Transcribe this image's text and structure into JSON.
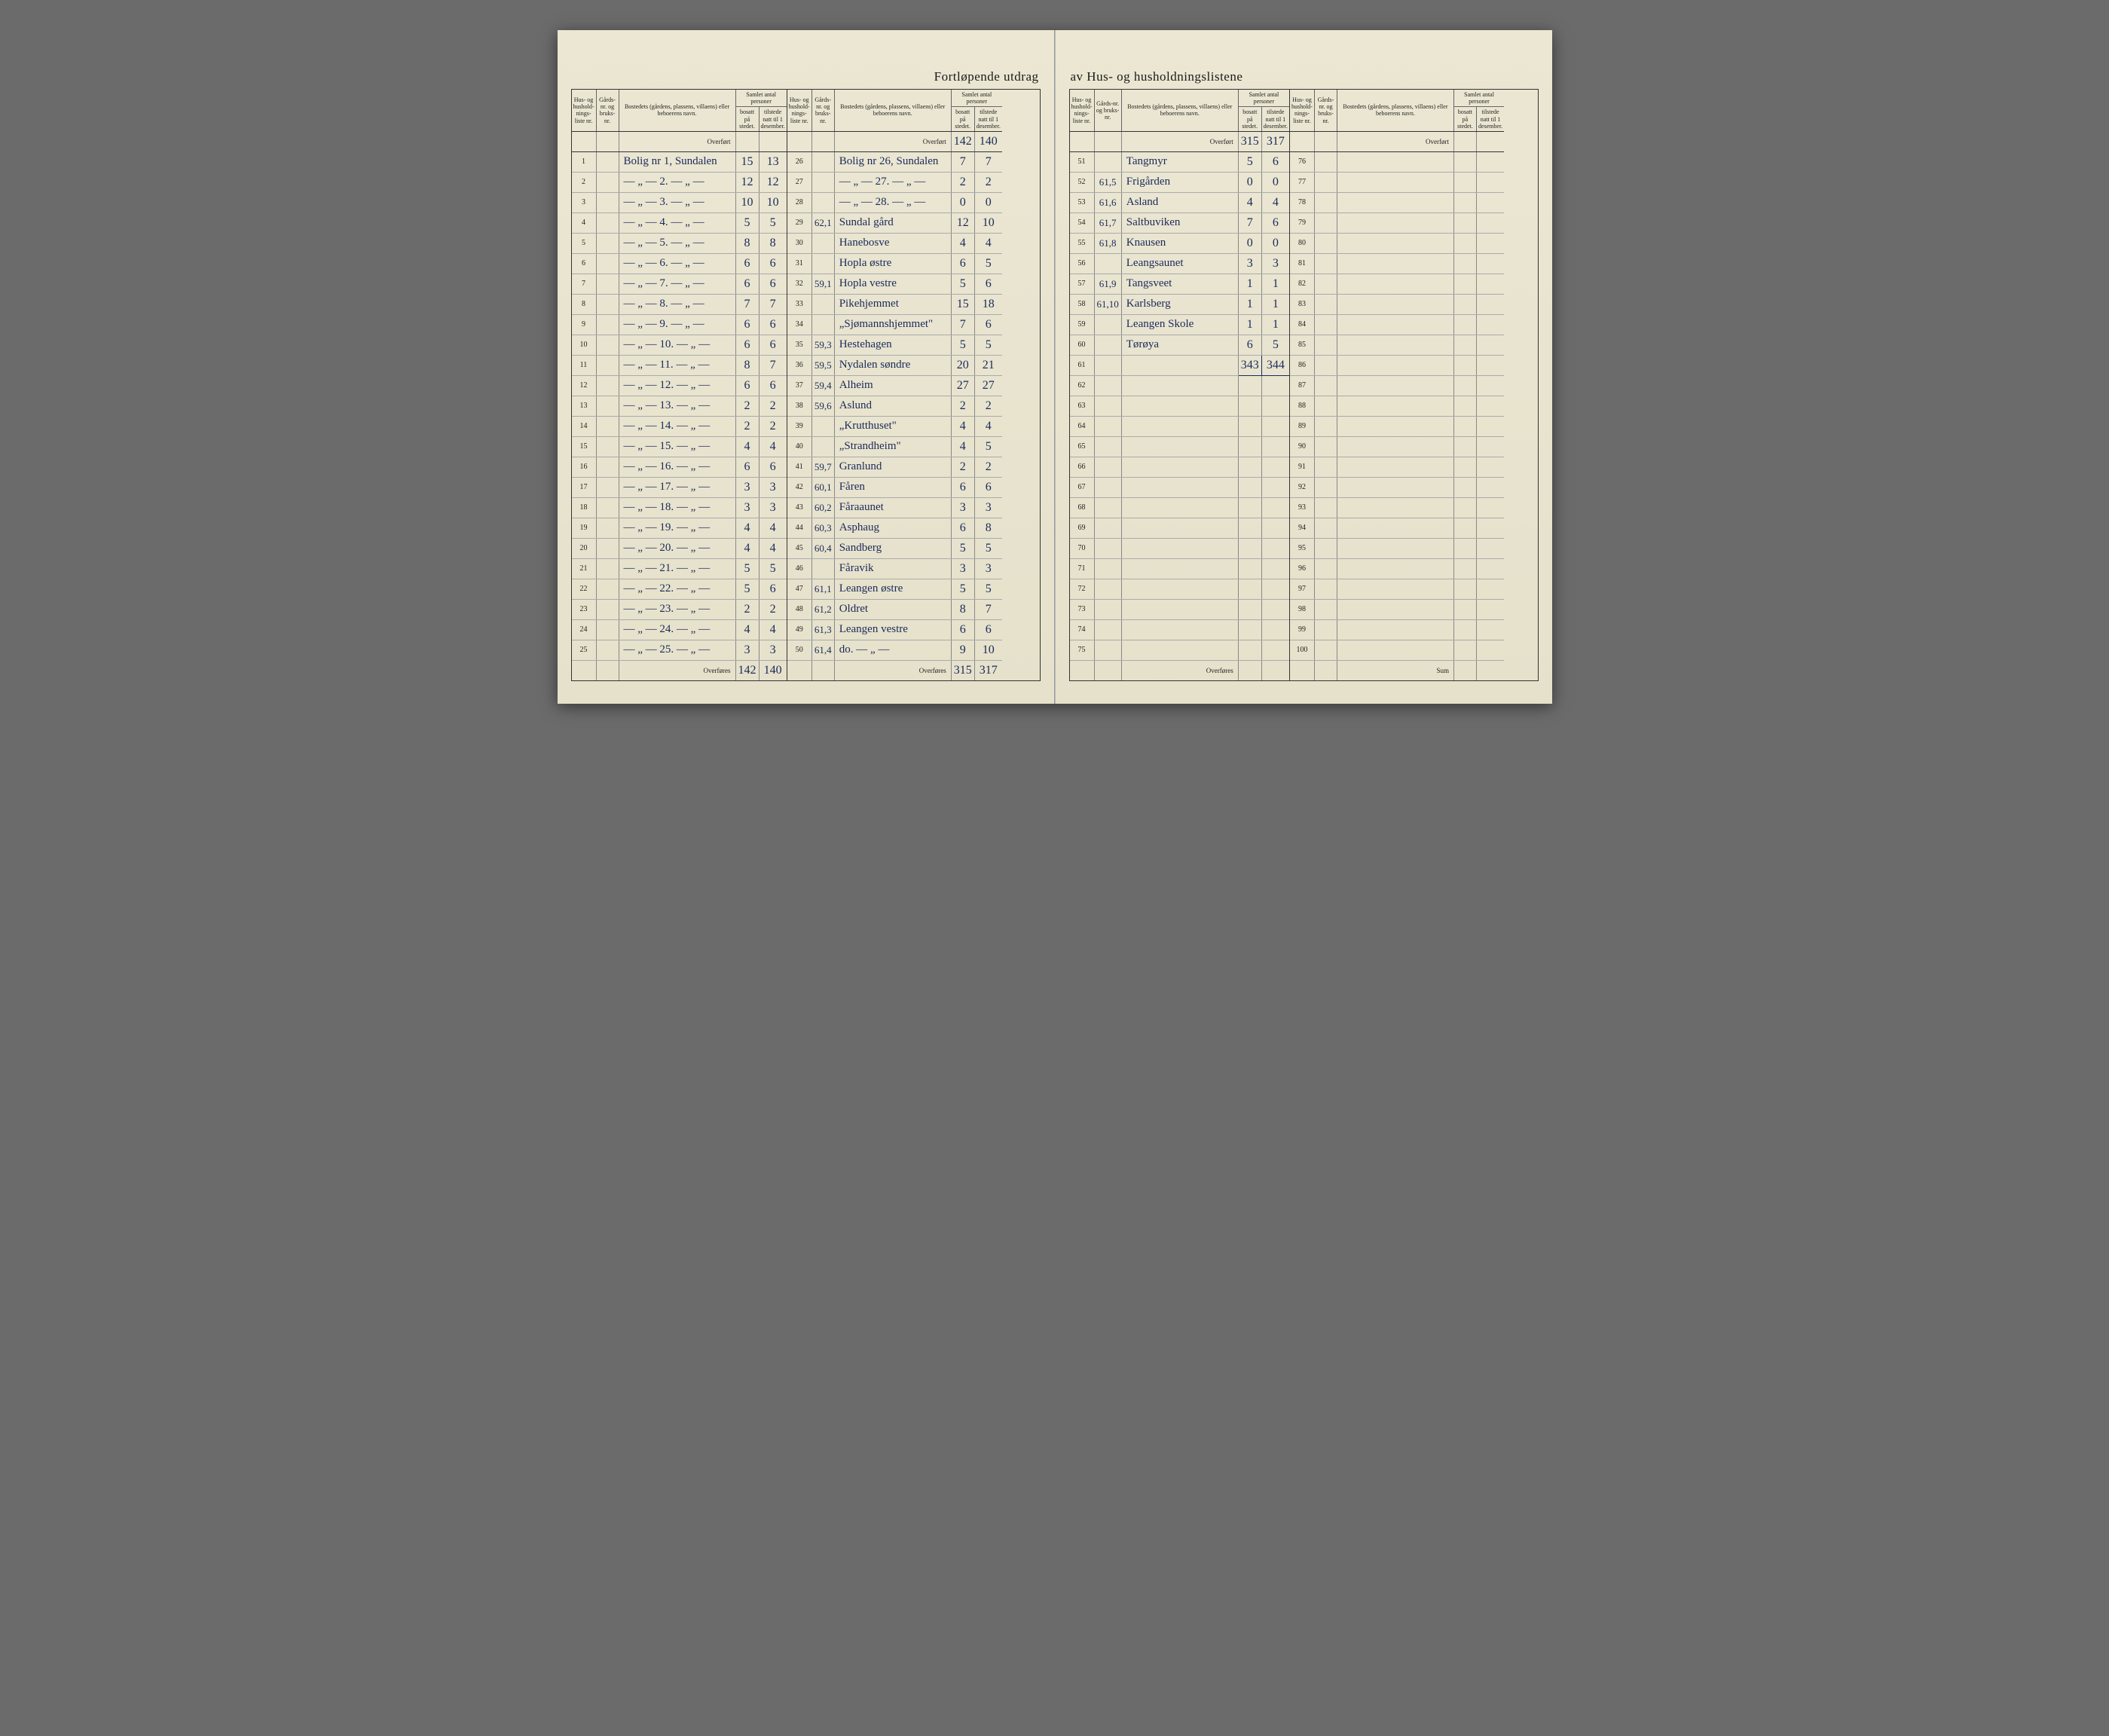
{
  "title_left": "Fortløpende utdrag",
  "title_right": "av Hus- og husholdningslistene",
  "headers": {
    "liste": "Hus- og hushold-nings-liste nr.",
    "gard": "Gårds-nr. og bruks-nr.",
    "bosted": "Bostedets (gårdens, plassens, villaens) eller beboerens navn.",
    "samlet": "Samlet antal personer",
    "bosatt": "bosatt på stedet.",
    "tilstede": "tilstede natt til 1 desember."
  },
  "overfort": "Overført",
  "overfores": "Overføres",
  "sum": "Sum",
  "block1": {
    "rows": [
      {
        "n": "1",
        "g": "",
        "name": "Bolig nr 1, Sundalen",
        "b": "15",
        "t": "13"
      },
      {
        "n": "2",
        "g": "",
        "name": "— „ — 2. — „ —",
        "b": "12",
        "t": "12"
      },
      {
        "n": "3",
        "g": "",
        "name": "— „ — 3. — „ —",
        "b": "10",
        "t": "10"
      },
      {
        "n": "4",
        "g": "",
        "name": "— „ — 4. — „ —",
        "b": "5",
        "t": "5"
      },
      {
        "n": "5",
        "g": "",
        "name": "— „ — 5. — „ —",
        "b": "8",
        "t": "8"
      },
      {
        "n": "6",
        "g": "",
        "name": "— „ — 6. — „ —",
        "b": "6",
        "t": "6"
      },
      {
        "n": "7",
        "g": "",
        "name": "— „ — 7. — „ —",
        "b": "6",
        "t": "6"
      },
      {
        "n": "8",
        "g": "",
        "name": "— „ — 8. — „ —",
        "b": "7",
        "t": "7"
      },
      {
        "n": "9",
        "g": "",
        "name": "— „ — 9. — „ —",
        "b": "6",
        "t": "6"
      },
      {
        "n": "10",
        "g": "",
        "name": "— „ — 10. — „ —",
        "b": "6",
        "t": "6"
      },
      {
        "n": "11",
        "g": "",
        "name": "— „ — 11. — „ —",
        "b": "8",
        "t": "7"
      },
      {
        "n": "12",
        "g": "",
        "name": "— „ — 12. — „ —",
        "b": "6",
        "t": "6"
      },
      {
        "n": "13",
        "g": "",
        "name": "— „ — 13. — „ —",
        "b": "2",
        "t": "2"
      },
      {
        "n": "14",
        "g": "",
        "name": "— „ — 14. — „ —",
        "b": "2",
        "t": "2"
      },
      {
        "n": "15",
        "g": "",
        "name": "— „ — 15. — „ —",
        "b": "4",
        "t": "4"
      },
      {
        "n": "16",
        "g": "",
        "name": "— „ — 16. — „ —",
        "b": "6",
        "t": "6"
      },
      {
        "n": "17",
        "g": "",
        "name": "— „ — 17. — „ —",
        "b": "3",
        "t": "3"
      },
      {
        "n": "18",
        "g": "",
        "name": "— „ — 18. — „ —",
        "b": "3",
        "t": "3"
      },
      {
        "n": "19",
        "g": "",
        "name": "— „ — 19. — „ —",
        "b": "4",
        "t": "4"
      },
      {
        "n": "20",
        "g": "",
        "name": "— „ — 20. — „ —",
        "b": "4",
        "t": "4"
      },
      {
        "n": "21",
        "g": "",
        "name": "— „ — 21. — „ —",
        "b": "5",
        "t": "5"
      },
      {
        "n": "22",
        "g": "",
        "name": "— „ — 22. — „ —",
        "b": "5",
        "t": "6"
      },
      {
        "n": "23",
        "g": "",
        "name": "— „ — 23. — „ —",
        "b": "2",
        "t": "2"
      },
      {
        "n": "24",
        "g": "",
        "name": "— „ — 24. — „ —",
        "b": "4",
        "t": "4"
      },
      {
        "n": "25",
        "g": "",
        "name": "— „ — 25. — „ —",
        "b": "3",
        "t": "3"
      }
    ],
    "footer_b": "142",
    "footer_t": "140"
  },
  "block2": {
    "carry_b": "142",
    "carry_t": "140",
    "rows": [
      {
        "n": "26",
        "g": "",
        "name": "Bolig nr 26, Sundalen",
        "b": "7",
        "t": "7"
      },
      {
        "n": "27",
        "g": "",
        "name": "— „ — 27. — „ —",
        "b": "2",
        "t": "2"
      },
      {
        "n": "28",
        "g": "",
        "name": "— „ — 28. — „ —",
        "b": "0",
        "t": "0"
      },
      {
        "n": "29",
        "g": "62,1",
        "name": "Sundal gård",
        "b": "12",
        "t": "10"
      },
      {
        "n": "30",
        "g": "",
        "name": "Hanebosve",
        "b": "4",
        "t": "4"
      },
      {
        "n": "31",
        "g": "",
        "name": "Hopla østre",
        "b": "6",
        "t": "5"
      },
      {
        "n": "32",
        "g": "59,1",
        "name": "Hopla vestre",
        "b": "5",
        "t": "6"
      },
      {
        "n": "33",
        "g": "",
        "name": "Pikehjemmet",
        "b": "15",
        "t": "18"
      },
      {
        "n": "34",
        "g": "",
        "name": "„Sjømannshjemmet\"",
        "b": "7",
        "t": "6"
      },
      {
        "n": "35",
        "g": "59,3",
        "name": "Hestehagen",
        "b": "5",
        "t": "5"
      },
      {
        "n": "36",
        "g": "59,5",
        "name": "Nydalen søndre",
        "b": "20",
        "t": "21"
      },
      {
        "n": "37",
        "g": "59,4",
        "name": "Alheim",
        "b": "27",
        "t": "27"
      },
      {
        "n": "38",
        "g": "59,6",
        "name": "Aslund",
        "b": "2",
        "t": "2"
      },
      {
        "n": "39",
        "g": "",
        "name": "„Krutthuset\"",
        "b": "4",
        "t": "4"
      },
      {
        "n": "40",
        "g": "",
        "name": "„Strandheim\"",
        "b": "4",
        "t": "5"
      },
      {
        "n": "41",
        "g": "59,7",
        "name": "Granlund",
        "b": "2",
        "t": "2"
      },
      {
        "n": "42",
        "g": "60,1",
        "name": "Fåren",
        "b": "6",
        "t": "6"
      },
      {
        "n": "43",
        "g": "60,2",
        "name": "Fåraaunet",
        "b": "3",
        "t": "3"
      },
      {
        "n": "44",
        "g": "60,3",
        "name": "Asphaug",
        "b": "6",
        "t": "8"
      },
      {
        "n": "45",
        "g": "60,4",
        "name": "Sandberg",
        "b": "5",
        "t": "5"
      },
      {
        "n": "46",
        "g": "",
        "name": "Fåravik",
        "b": "3",
        "t": "3"
      },
      {
        "n": "47",
        "g": "61,1",
        "name": "Leangen østre",
        "b": "5",
        "t": "5"
      },
      {
        "n": "48",
        "g": "61,2",
        "name": "Oldret",
        "b": "8",
        "t": "7"
      },
      {
        "n": "49",
        "g": "61,3",
        "name": "Leangen vestre",
        "b": "6",
        "t": "6"
      },
      {
        "n": "50",
        "g": "61,4",
        "name": "do. — „ —",
        "b": "9",
        "t": "10"
      }
    ],
    "footer_b": "315",
    "footer_t": "317"
  },
  "block3": {
    "carry_b": "315",
    "carry_t": "317",
    "rows": [
      {
        "n": "51",
        "g": "",
        "name": "Tangmyr",
        "b": "5",
        "t": "6"
      },
      {
        "n": "52",
        "g": "61,5",
        "name": "Frigården",
        "b": "0",
        "t": "0"
      },
      {
        "n": "53",
        "g": "61,6",
        "name": "Asland",
        "b": "4",
        "t": "4"
      },
      {
        "n": "54",
        "g": "61,7",
        "name": "Saltbuviken",
        "b": "7",
        "t": "6"
      },
      {
        "n": "55",
        "g": "61,8",
        "name": "Knausen",
        "b": "0",
        "t": "0"
      },
      {
        "n": "56",
        "g": "",
        "name": "Leangsaunet",
        "b": "3",
        "t": "3"
      },
      {
        "n": "57",
        "g": "61,9",
        "name": "Tangsveet",
        "b": "1",
        "t": "1"
      },
      {
        "n": "58",
        "g": "61,10",
        "name": "Karlsberg",
        "b": "1",
        "t": "1"
      },
      {
        "n": "59",
        "g": "",
        "name": "Leangen Skole",
        "b": "1",
        "t": "1"
      },
      {
        "n": "60",
        "g": "",
        "name": "Tørøya",
        "b": "6",
        "t": "5"
      },
      {
        "n": "61",
        "g": "",
        "name": "",
        "b": "343",
        "t": "344",
        "total": true
      },
      {
        "n": "62"
      },
      {
        "n": "63"
      },
      {
        "n": "64"
      },
      {
        "n": "65"
      },
      {
        "n": "66"
      },
      {
        "n": "67"
      },
      {
        "n": "68"
      },
      {
        "n": "69"
      },
      {
        "n": "70"
      },
      {
        "n": "71"
      },
      {
        "n": "72"
      },
      {
        "n": "73"
      },
      {
        "n": "74"
      },
      {
        "n": "75"
      }
    ]
  },
  "block4": {
    "rows": [
      {
        "n": "76"
      },
      {
        "n": "77"
      },
      {
        "n": "78"
      },
      {
        "n": "79"
      },
      {
        "n": "80"
      },
      {
        "n": "81"
      },
      {
        "n": "82"
      },
      {
        "n": "83"
      },
      {
        "n": "84"
      },
      {
        "n": "85"
      },
      {
        "n": "86"
      },
      {
        "n": "87"
      },
      {
        "n": "88"
      },
      {
        "n": "89"
      },
      {
        "n": "90"
      },
      {
        "n": "91"
      },
      {
        "n": "92"
      },
      {
        "n": "93"
      },
      {
        "n": "94"
      },
      {
        "n": "95"
      },
      {
        "n": "96"
      },
      {
        "n": "97"
      },
      {
        "n": "98"
      },
      {
        "n": "99"
      },
      {
        "n": "100"
      }
    ]
  },
  "colors": {
    "paper": "#e8e4d0",
    "ink_print": "#1a1a1a",
    "ink_pen": "#1a2a5a",
    "rule": "#333333",
    "rule_light": "#888888"
  }
}
